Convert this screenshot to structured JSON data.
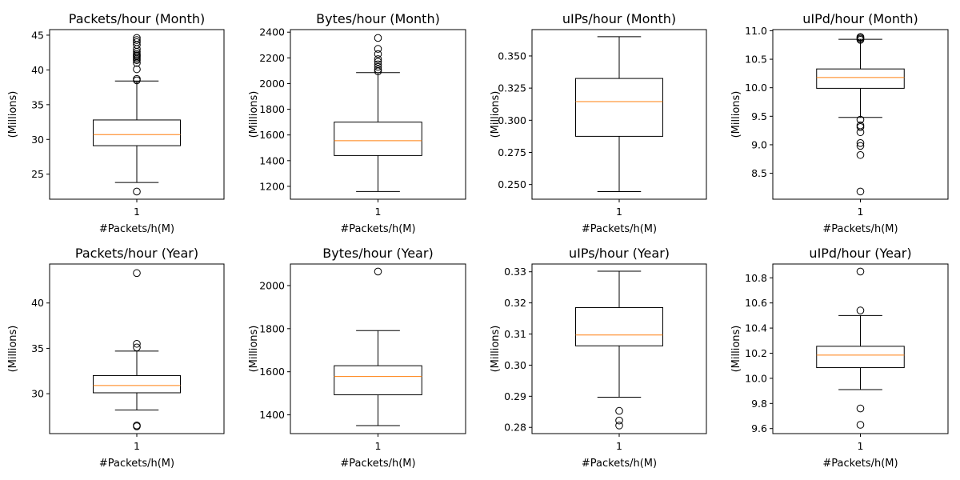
{
  "chart_data": [
    {
      "type": "box",
      "title": "Packets/hour (Month)",
      "xlabel": "#Packets/h(M)",
      "ylabel": "(Millions)",
      "categories": [
        "1"
      ],
      "ylim": [
        21.4,
        45.8
      ],
      "yticks": [
        25,
        30,
        35,
        40,
        45
      ],
      "box": {
        "whisker_low": 23.8,
        "q1": 29.1,
        "median": 30.7,
        "q3": 32.8,
        "whisker_high": 38.4
      },
      "outliers": [
        22.5,
        38.5,
        38.7,
        40.1,
        41.0,
        41.4,
        41.6,
        41.8,
        42.0,
        42.1,
        42.3,
        42.6,
        43.0,
        43.6,
        44.0,
        44.3,
        44.6
      ]
    },
    {
      "type": "box",
      "title": "Bytes/hour (Month)",
      "xlabel": "#Packets/h(M)",
      "ylabel": "(Millions)",
      "categories": [
        "1"
      ],
      "ylim": [
        1100,
        2420
      ],
      "yticks": [
        1200,
        1400,
        1600,
        1800,
        2000,
        2200,
        2400
      ],
      "box": {
        "whisker_low": 1160,
        "q1": 1440,
        "median": 1555,
        "q3": 1700,
        "whisker_high": 2085
      },
      "outliers": [
        2095,
        2110,
        2130,
        2150,
        2170,
        2190,
        2230,
        2270,
        2355
      ]
    },
    {
      "type": "box",
      "title": "uIPs/hour (Month)",
      "xlabel": "#Packets/h(M)",
      "ylabel": "(Millions)",
      "categories": [
        "1"
      ],
      "ylim": [
        0.2386,
        0.3705
      ],
      "yticks": [
        0.25,
        0.275,
        0.3,
        0.325,
        0.35
      ],
      "ytick_labels": [
        "0.250",
        "0.275",
        "0.300",
        "0.325",
        "0.350"
      ],
      "box": {
        "whisker_low": 0.2445,
        "q1": 0.2875,
        "median": 0.3145,
        "q3": 0.3325,
        "whisker_high": 0.365
      },
      "outliers": []
    },
    {
      "type": "box",
      "title": "uIPd/hour (Month)",
      "xlabel": "#Packets/h(M)",
      "ylabel": "(Millions)",
      "categories": [
        "1"
      ],
      "ylim": [
        8.045,
        11.02
      ],
      "yticks": [
        8.5,
        9.0,
        9.5,
        10.0,
        10.5,
        11.0
      ],
      "ytick_labels": [
        "8.5",
        "9.0",
        "9.5",
        "10.0",
        "10.5",
        "11.0"
      ],
      "box": {
        "whisker_low": 9.48,
        "q1": 9.99,
        "median": 10.18,
        "q3": 10.33,
        "whisker_high": 10.85
      },
      "outliers": [
        8.18,
        8.82,
        8.98,
        9.03,
        9.22,
        9.31,
        9.34,
        9.44,
        10.84,
        10.86,
        10.88,
        10.89
      ]
    },
    {
      "type": "box",
      "title": "Packets/hour (Year)",
      "xlabel": "#Packets/h(M)",
      "ylabel": "(Millions)",
      "categories": [
        "1"
      ],
      "ylim": [
        25.6,
        44.3
      ],
      "yticks": [
        30,
        35,
        40
      ],
      "box": {
        "whisker_low": 28.2,
        "q1": 30.1,
        "median": 30.9,
        "q3": 32.0,
        "whisker_high": 34.7
      },
      "outliers": [
        26.4,
        26.5,
        35.1,
        35.5,
        43.3
      ]
    },
    {
      "type": "box",
      "title": "Bytes/hour (Year)",
      "xlabel": "#Packets/h(M)",
      "ylabel": "(Millions)",
      "categories": [
        "1"
      ],
      "ylim": [
        1313,
        2100
      ],
      "yticks": [
        1400,
        1600,
        1800,
        2000
      ],
      "box": {
        "whisker_low": 1350,
        "q1": 1493,
        "median": 1578,
        "q3": 1628,
        "whisker_high": 1791
      },
      "outliers": [
        2065
      ]
    },
    {
      "type": "box",
      "title": "uIPs/hour (Year)",
      "xlabel": "#Packets/h(M)",
      "ylabel": "(Millions)",
      "categories": [
        "1"
      ],
      "ylim": [
        0.278,
        0.3325
      ],
      "yticks": [
        0.28,
        0.29,
        0.3,
        0.31,
        0.32,
        0.33
      ],
      "ytick_labels": [
        "0.28",
        "0.29",
        "0.30",
        "0.31",
        "0.32",
        "0.33"
      ],
      "box": {
        "whisker_low": 0.2897,
        "q1": 0.3062,
        "median": 0.3097,
        "q3": 0.3185,
        "whisker_high": 0.3302
      },
      "outliers": [
        0.2806,
        0.2822,
        0.2853
      ]
    },
    {
      "type": "box",
      "title": "uIPd/hour (Year)",
      "xlabel": "#Packets/h(M)",
      "ylabel": "(Millions)",
      "categories": [
        "1"
      ],
      "ylim": [
        9.56,
        10.91
      ],
      "yticks": [
        9.6,
        9.8,
        10.0,
        10.2,
        10.4,
        10.6,
        10.8
      ],
      "ytick_labels": [
        "9.6",
        "9.8",
        "10.0",
        "10.2",
        "10.4",
        "10.6",
        "10.8"
      ],
      "box": {
        "whisker_low": 9.91,
        "q1": 10.085,
        "median": 10.185,
        "q3": 10.255,
        "whisker_high": 10.5
      },
      "outliers": [
        9.63,
        9.76,
        10.54,
        10.85
      ]
    }
  ],
  "colors": {
    "box": "#000000",
    "median": "#ff7f0e",
    "background": "#ffffff"
  }
}
